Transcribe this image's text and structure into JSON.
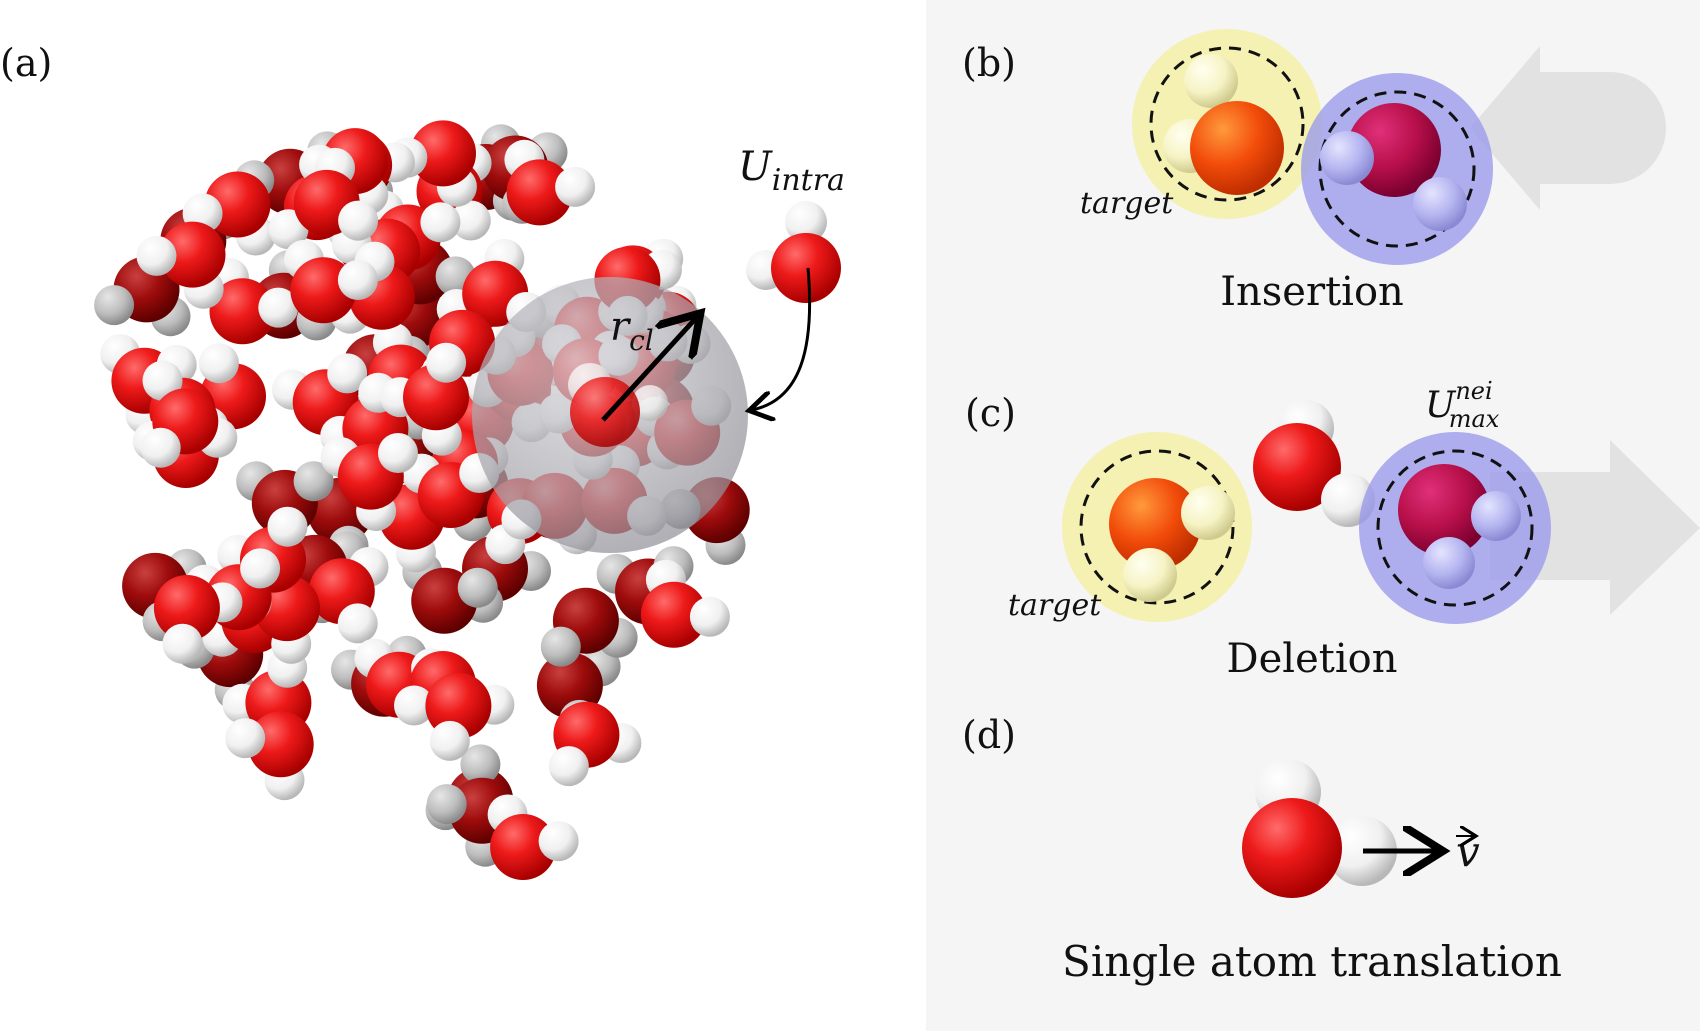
{
  "panels": {
    "a": {
      "label": "(a)",
      "r_label_base": "r",
      "r_label_sub": "cl",
      "u_label_base": "U",
      "u_label_sub": "intra"
    },
    "b": {
      "label": "(b)",
      "caption": "Insertion",
      "target_label": "target"
    },
    "c": {
      "label": "(c)",
      "caption": "Deletion",
      "target_label": "target",
      "u_label_base": "U",
      "u_label_sup": "nei",
      "u_label_sub": "max"
    },
    "d": {
      "label": "(d)",
      "caption": "Single atom translation",
      "vector_label": "v"
    }
  },
  "colors": {
    "oxygen": "#e8121a",
    "hydrogen": "#f4f4f4",
    "target_halo": "#f3f0a6",
    "neighbor_halo": "#9a9aec",
    "right_bg": "#f5f5f5",
    "cluster_sphere": "#9a9aa2"
  }
}
